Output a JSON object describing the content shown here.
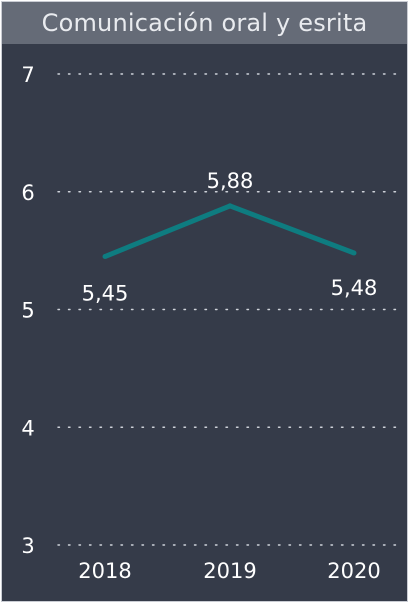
{
  "chart_data": {
    "type": "line",
    "title": "Comunicación oral y esrita",
    "categories": [
      "2018",
      "2019",
      "2020"
    ],
    "values": [
      5.45,
      5.88,
      5.48
    ],
    "value_labels": [
      "5,45",
      "5,88",
      "5,48"
    ],
    "y_ticks": [
      "3",
      "4",
      "5",
      "6",
      "7"
    ],
    "ylim": [
      3,
      7
    ],
    "grid": "dotted-horizontal",
    "legend": "none",
    "colors": {
      "line": "#0e7c80",
      "background": "#353b49",
      "header": "#656b77"
    }
  }
}
